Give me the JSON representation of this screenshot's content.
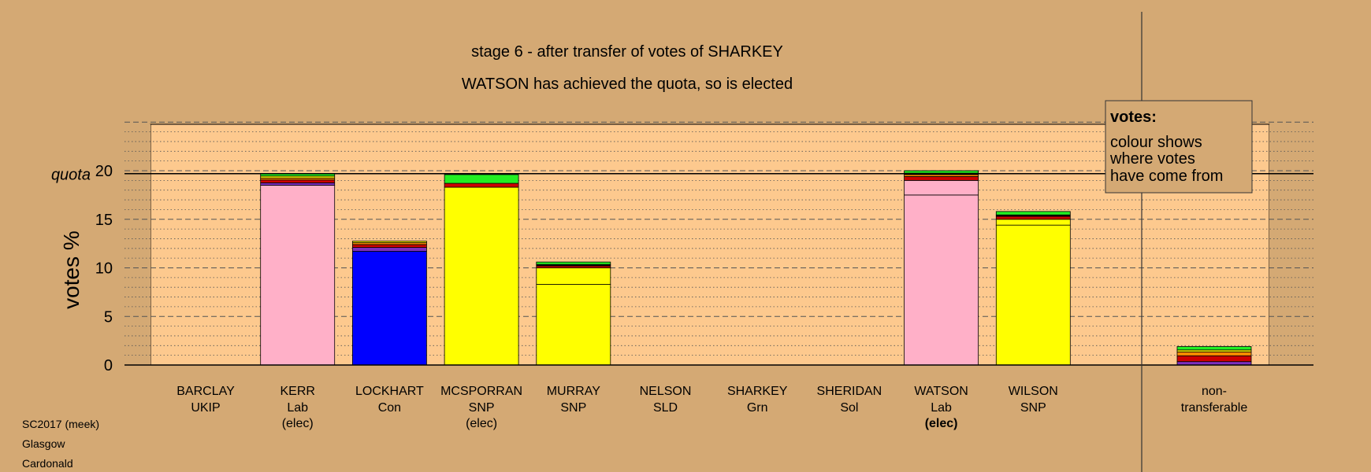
{
  "chart_data": {
    "type": "bar",
    "stacked": true,
    "title": "stage 6 - after transfer of votes of SHARKEY",
    "subtitle": "WATSON has achieved the quota, so is elected",
    "ylabel": "votes %",
    "quota_label": "quota",
    "quota": 19.7,
    "ylim": [
      0,
      25
    ],
    "yticks": [
      "0",
      "5",
      "10",
      "15",
      "20"
    ],
    "grid": "dashed every 5, dotted every 1",
    "candidates": [
      {
        "name": "BARCLAY",
        "party": "UKIP",
        "status": "",
        "segments": []
      },
      {
        "name": "KERR",
        "party": "Lab",
        "status": "(elec)",
        "segments": [
          {
            "color": "#ffb0c8",
            "value": 18.5
          },
          {
            "color": "#7b2fbf",
            "value": 0.25
          },
          {
            "color": "#cc0000",
            "value": 0.3
          },
          {
            "color": "#ff8c00",
            "value": 0.2
          },
          {
            "color": "#ffff00",
            "value": 0.2
          },
          {
            "color": "#22ee22",
            "value": 0.25
          }
        ]
      },
      {
        "name": "LOCKHART",
        "party": "Con",
        "status": "",
        "segments": [
          {
            "color": "#0000ff",
            "value": 11.7
          },
          {
            "color": "#7b2fbf",
            "value": 0.4
          },
          {
            "color": "#cc0000",
            "value": 0.3
          },
          {
            "color": "#ff8c00",
            "value": 0.2
          },
          {
            "color": "#ffff00",
            "value": 0.15
          }
        ]
      },
      {
        "name": "MCSPORRAN",
        "party": "SNP",
        "status": "(elec)",
        "segments": [
          {
            "color": "#ffff00",
            "value": 18.3
          },
          {
            "color": "#cc0000",
            "value": 0.4
          },
          {
            "color": "#22ee22",
            "value": 0.9
          }
        ]
      },
      {
        "name": "MURRAY",
        "party": "SNP",
        "status": "",
        "segments": [
          {
            "color": "#ffff00",
            "value": 8.3
          },
          {
            "color": "#ffff00",
            "value": 1.7
          },
          {
            "color": "#cc0000",
            "value": 0.2
          },
          {
            "color": "#000000",
            "value": 0.15
          },
          {
            "color": "#22ee22",
            "value": 0.25
          }
        ]
      },
      {
        "name": "NELSON",
        "party": "SLD",
        "status": "",
        "segments": []
      },
      {
        "name": "SHARKEY",
        "party": "Grn",
        "status": "",
        "segments": []
      },
      {
        "name": "SHERIDAN",
        "party": "Sol",
        "status": "",
        "segments": []
      },
      {
        "name": "WATSON",
        "party": "Lab",
        "status": "(elec)",
        "segments": [
          {
            "color": "#ffb0c8",
            "value": 17.5
          },
          {
            "color": "#ffb0c8",
            "value": 1.5
          },
          {
            "color": "#cc0000",
            "value": 0.4
          },
          {
            "color": "#ff8c00",
            "value": 0.2
          },
          {
            "color": "#ffff00",
            "value": 0.15
          },
          {
            "color": "#22ee22",
            "value": 0.25
          }
        ]
      },
      {
        "name": "WILSON",
        "party": "SNP",
        "status": "",
        "segments": [
          {
            "color": "#ffff00",
            "value": 14.4
          },
          {
            "color": "#ffff00",
            "value": 0.6
          },
          {
            "color": "#cc0000",
            "value": 0.3
          },
          {
            "color": "#000000",
            "value": 0.15
          },
          {
            "color": "#22ee22",
            "value": 0.35
          }
        ]
      }
    ],
    "nontransferable": {
      "label_line1": "non-",
      "label_line2": "transferable",
      "segments": [
        {
          "color": "#7b2fbf",
          "value": 0.35
        },
        {
          "color": "#cc0000",
          "value": 0.6
        },
        {
          "color": "#ff8c00",
          "value": 0.4
        },
        {
          "color": "#ffff00",
          "value": 0.2
        },
        {
          "color": "#22ee22",
          "value": 0.35
        }
      ]
    },
    "legend": {
      "title": "votes:",
      "lines": [
        "colour shows",
        "where votes",
        "have come from"
      ],
      "placement": "top-right"
    }
  },
  "footer": {
    "line1": "SC2017 (meek)",
    "line2": "Glasgow",
    "line3": "Cardonald"
  }
}
